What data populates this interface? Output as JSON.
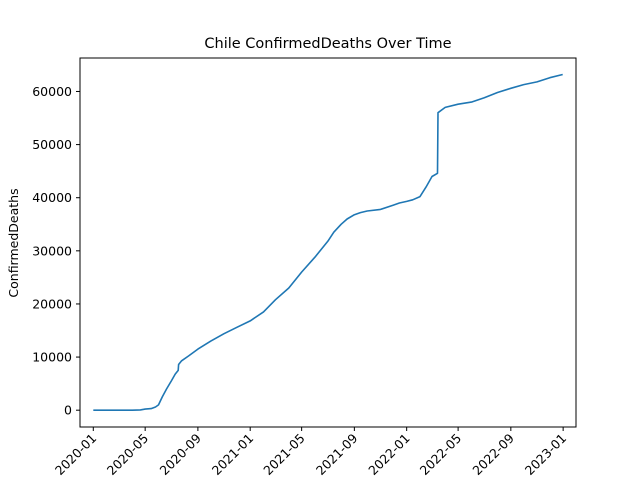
{
  "chart_data": {
    "type": "line",
    "title": "Chile  ConfirmedDeaths Over Time",
    "xlabel": "",
    "ylabel": "ConfirmedDeaths",
    "grid": false,
    "legend": "none",
    "xlim": [
      "2019-12-01",
      "2023-01-31"
    ],
    "ylim": [
      -3164,
      66300
    ],
    "x_ticks": [
      "2020-01",
      "2020-05",
      "2020-09",
      "2021-01",
      "2021-05",
      "2021-09",
      "2022-01",
      "2022-05",
      "2022-09",
      "2023-01"
    ],
    "y_ticks": [
      0,
      10000,
      20000,
      30000,
      40000,
      50000,
      60000
    ],
    "y_tick_labels": [
      "0",
      "10000",
      "20000",
      "30000",
      "40000",
      "50000",
      "60000"
    ],
    "series": [
      {
        "color": "#1f77b4",
        "x": [
          "2020-01-01",
          "2020-02-01",
          "2020-03-01",
          "2020-04-01",
          "2020-04-20",
          "2020-05-01",
          "2020-05-15",
          "2020-05-25",
          "2020-06-01",
          "2020-06-10",
          "2020-06-20",
          "2020-07-01",
          "2020-07-10",
          "2020-07-17",
          "2020-07-18",
          "2020-07-25",
          "2020-08-10",
          "2020-09-01",
          "2020-10-01",
          "2020-11-01",
          "2020-12-01",
          "2021-01-01",
          "2021-02-01",
          "2021-03-01",
          "2021-04-01",
          "2021-05-01",
          "2021-06-01",
          "2021-07-01",
          "2021-07-15",
          "2021-08-01",
          "2021-08-15",
          "2021-09-01",
          "2021-09-15",
          "2021-10-01",
          "2021-11-01",
          "2021-12-01",
          "2021-12-15",
          "2022-01-01",
          "2022-01-15",
          "2022-02-01",
          "2022-02-15",
          "2022-03-01",
          "2022-03-14",
          "2022-03-15",
          "2022-04-01",
          "2022-05-01",
          "2022-06-01",
          "2022-07-01",
          "2022-08-01",
          "2022-09-01",
          "2022-10-01",
          "2022-11-01",
          "2022-12-01",
          "2022-12-31"
        ],
        "y": [
          0,
          0,
          0,
          0,
          50,
          200,
          300,
          600,
          1000,
          2500,
          4000,
          5500,
          6800,
          7500,
          8600,
          9300,
          10200,
          11500,
          13000,
          14400,
          15600,
          16800,
          18500,
          20800,
          23000,
          26000,
          28800,
          31800,
          33500,
          35000,
          36000,
          36800,
          37200,
          37500,
          37800,
          38600,
          39000,
          39300,
          39600,
          40200,
          42000,
          44000,
          44600,
          56000,
          57000,
          57600,
          58000,
          58800,
          59800,
          60600,
          61300,
          61800,
          62600,
          63200
        ]
      }
    ]
  }
}
